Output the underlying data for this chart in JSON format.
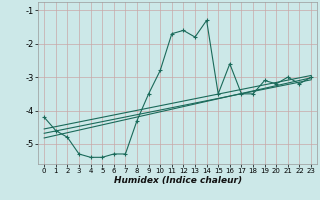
{
  "xlabel": "Humidex (Indice chaleur)",
  "bg_color": "#cce8e8",
  "grid_color": "#c8a8a8",
  "line_color": "#1a6a5a",
  "xlim": [
    -0.5,
    23.5
  ],
  "ylim": [
    -5.6,
    -0.75
  ],
  "yticks": [
    -5,
    -4,
    -3,
    -2,
    -1
  ],
  "xticks": [
    0,
    1,
    2,
    3,
    4,
    5,
    6,
    7,
    8,
    9,
    10,
    11,
    12,
    13,
    14,
    15,
    16,
    17,
    18,
    19,
    20,
    21,
    22,
    23
  ],
  "curve1_x": [
    0,
    1,
    2,
    3,
    4,
    5,
    6,
    7,
    8,
    9,
    10,
    11,
    12,
    13,
    14,
    15,
    16,
    17,
    18,
    19,
    20,
    21,
    22,
    23
  ],
  "curve1_y": [
    -4.2,
    -4.6,
    -4.8,
    -5.3,
    -5.4,
    -5.4,
    -5.3,
    -5.3,
    -4.3,
    -3.5,
    -2.8,
    -1.7,
    -1.6,
    -1.8,
    -1.3,
    -3.5,
    -2.6,
    -3.5,
    -3.5,
    -3.1,
    -3.2,
    -3.0,
    -3.2,
    -3.0
  ],
  "line1_x": [
    0,
    23
  ],
  "line1_y": [
    -4.55,
    -2.95
  ],
  "line2_x": [
    0,
    23
  ],
  "line2_y": [
    -4.68,
    -3.08
  ],
  "line3_x": [
    0,
    23
  ],
  "line3_y": [
    -4.82,
    -3.02
  ]
}
